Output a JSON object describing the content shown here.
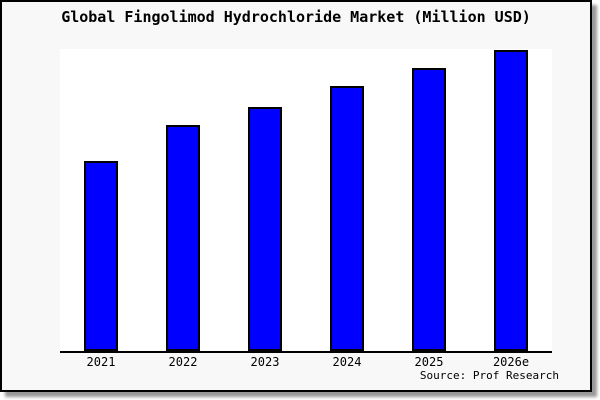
{
  "title": "Global Fingolimod Hydrochloride Market (Million USD)",
  "source": "Source: Prof Research",
  "colors": {
    "bar_fill": "#0000ff",
    "bar_border": "#000000",
    "plot_background": "#ffffff",
    "frame_background": "#f8f8f8",
    "frame_border": "#000000",
    "shadow": "#999999",
    "text": "#000000"
  },
  "chart_data": {
    "type": "bar",
    "title": "Global Fingolimod Hydrochloride Market (Million USD)",
    "categories": [
      "2021",
      "2022",
      "2023",
      "2024",
      "2025",
      "2026e"
    ],
    "values": [
      63,
      75,
      81,
      88,
      94,
      100
    ],
    "xlabel": "",
    "ylabel": "",
    "ylim": [
      0,
      100
    ],
    "y_axis_visible": false,
    "grid": false,
    "legend": false,
    "note": "No numeric y-axis shown in the image; values are relative bar heights as percent of the tallest (2026e) bar."
  }
}
